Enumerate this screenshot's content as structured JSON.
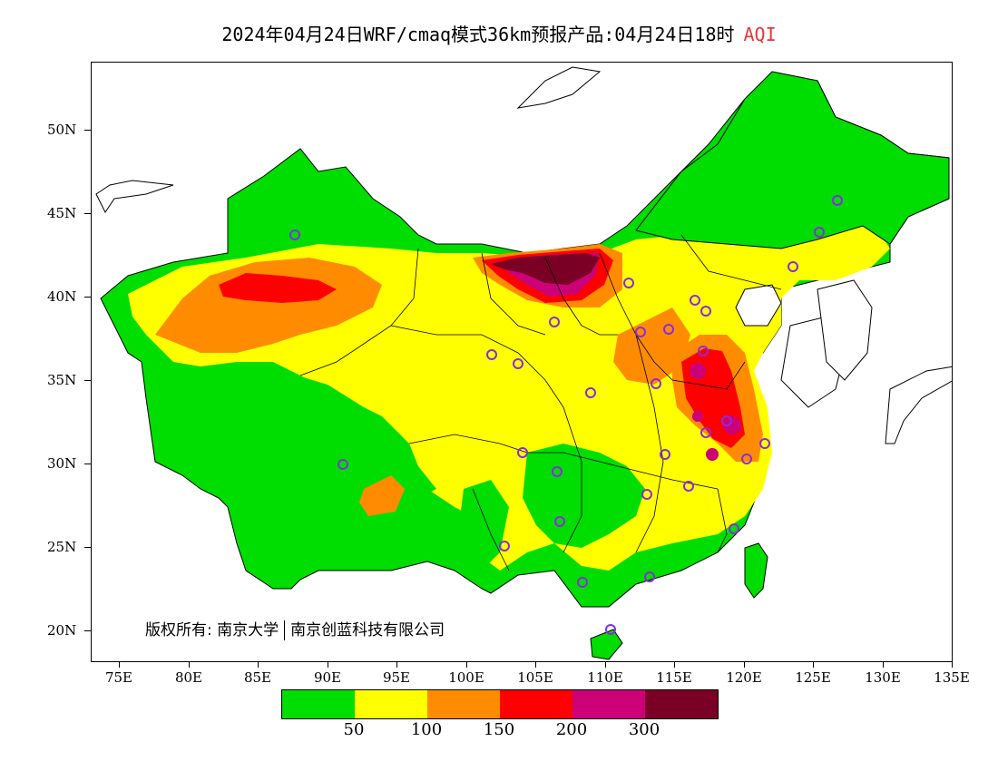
{
  "header": {
    "title": "2024年04月24日WRF/cmaq模式36km预报产品:04月24日18时",
    "variable": "AQI",
    "variable_color": "#e8373a"
  },
  "map": {
    "y_axis_labels": [
      "50N",
      "45N",
      "40N",
      "35N",
      "30N",
      "25N",
      "20N"
    ],
    "x_axis_labels": [
      "75E",
      "80E",
      "85E",
      "90E",
      "95E",
      "100E",
      "105E",
      "110E",
      "115E",
      "120E",
      "125E",
      "130E",
      "135E"
    ],
    "copyright_prefix": "版权所有:",
    "copyright_org1": "南京大学",
    "copyright_org2": "南京创蓝科技有限公司"
  },
  "legend": {
    "colors": [
      "#00dd00",
      "#ffff00",
      "#ff8c00",
      "#ff0000",
      "#cc0077",
      "#7a0025"
    ],
    "labels": [
      "50",
      "100",
      "150",
      "200",
      "300"
    ]
  },
  "palette": {
    "good": "#00dd00",
    "moderate": "#ffff00",
    "usg": "#ff8c00",
    "unhealthy": "#ff0000",
    "very_unhealthy": "#cc0077",
    "hazardous": "#7a0025",
    "station_marker": "#8a2be2"
  }
}
